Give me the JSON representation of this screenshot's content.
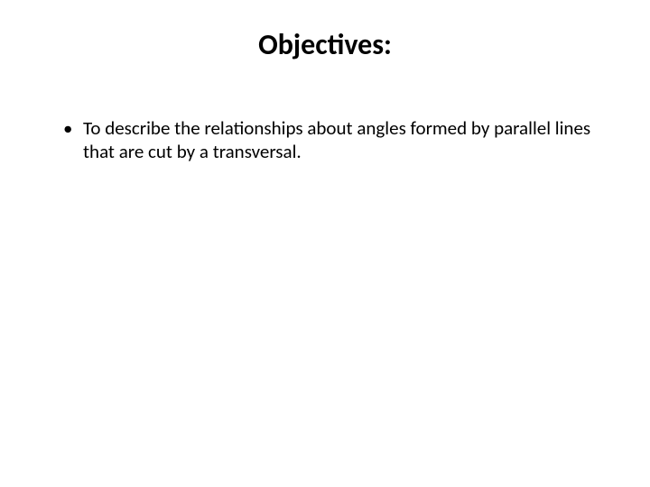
{
  "slide": {
    "title": "Objectives:",
    "title_fontsize": 32,
    "title_color": "#000000",
    "title_weight": "bold",
    "background_color": "#ffffff",
    "bullets": [
      {
        "text": "To describe the relationships about angles formed by parallel lines that are cut by a transversal."
      }
    ],
    "bullet_fontsize": 21,
    "bullet_color": "#000000"
  }
}
